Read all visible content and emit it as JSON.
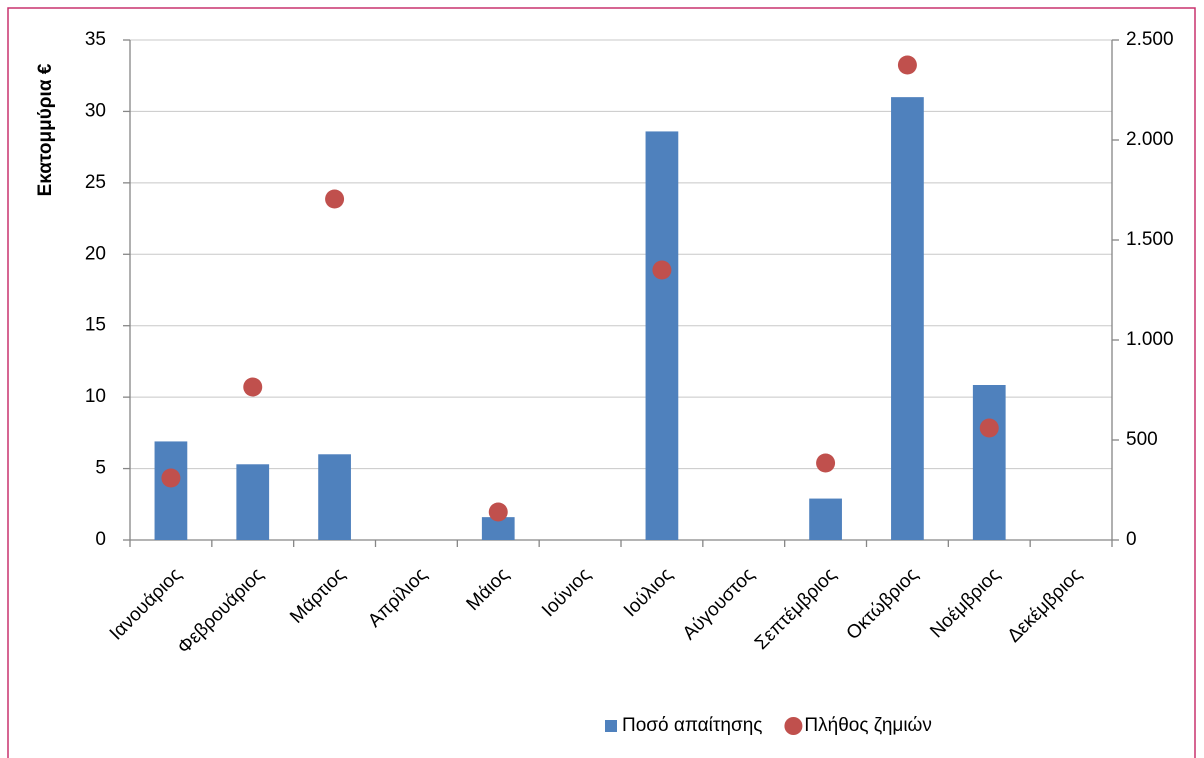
{
  "chart_data": {
    "type": "bar",
    "y_label": "Εκατομμύρια €",
    "categories": [
      "Ιανουάριος",
      "Φεβρουάριος",
      "Μάρτιος",
      "Απρίλιος",
      "Μάιος",
      "Ιούνιος",
      "Ιούλιος",
      "Αύγουστος",
      "Σεπτέμβριος",
      "Οκτώβριος",
      "Νοέμβριος",
      "Δεκέμβριος"
    ],
    "series": [
      {
        "name": "Ποσό απαίτησης",
        "type": "bar",
        "color": "#4f81bd",
        "axis": "y",
        "values": [
          6.9,
          5.3,
          6.0,
          0,
          1.6,
          0,
          28.6,
          0,
          2.9,
          31.0,
          10.85,
          0
        ]
      },
      {
        "name": "Πλήθος ζημιών",
        "type": "scatter",
        "color": "#c0504d",
        "axis": "y2",
        "values": [
          310,
          765,
          1705,
          null,
          140,
          null,
          1350,
          null,
          385,
          2375,
          560,
          null
        ]
      }
    ],
    "ylim": [
      0,
      35
    ],
    "yticks": [
      0,
      5,
      10,
      15,
      20,
      25,
      30,
      35
    ],
    "y2lim": [
      0,
      2500
    ],
    "y2ticks": [
      0,
      500,
      {
        "value": 1000,
        "label": "1.000"
      },
      {
        "value": 1500,
        "label": "1.500"
      },
      {
        "value": 2000,
        "label": "2.000"
      },
      {
        "value": 2500,
        "label": "2.500"
      }
    ],
    "grid": true,
    "legend": "bottom"
  }
}
